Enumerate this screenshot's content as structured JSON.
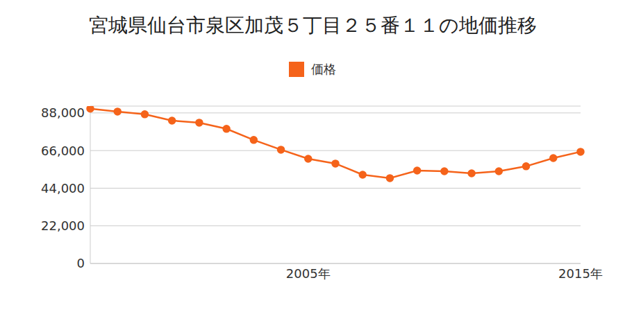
{
  "chart_data": {
    "type": "line",
    "title": "宮城県仙台市泉区加茂５丁目２５番１１の地価推移",
    "categories": [
      null,
      null,
      null,
      null,
      null,
      null,
      null,
      null,
      "2005年",
      null,
      null,
      null,
      null,
      null,
      null,
      null,
      null,
      null,
      "2015年"
    ],
    "series": [
      {
        "name": "価格",
        "color": "#f5631a",
        "marker": "circle",
        "values": [
          90500,
          88800,
          87200,
          83500,
          82300,
          78700,
          72200,
          66500,
          61200,
          58400,
          51900,
          49900,
          54300,
          53900,
          52700,
          53900,
          56800,
          61600,
          65300
        ]
      }
    ],
    "ylim": [
      0,
      92000
    ],
    "yticks": [
      0,
      {
        "value": 22000,
        "label": "22,000"
      },
      {
        "value": 44000,
        "label": "44,000"
      },
      {
        "value": 66000,
        "label": "66,000"
      },
      {
        "value": 88000,
        "label": "88,000"
      }
    ],
    "grid": true,
    "legend": "top"
  }
}
